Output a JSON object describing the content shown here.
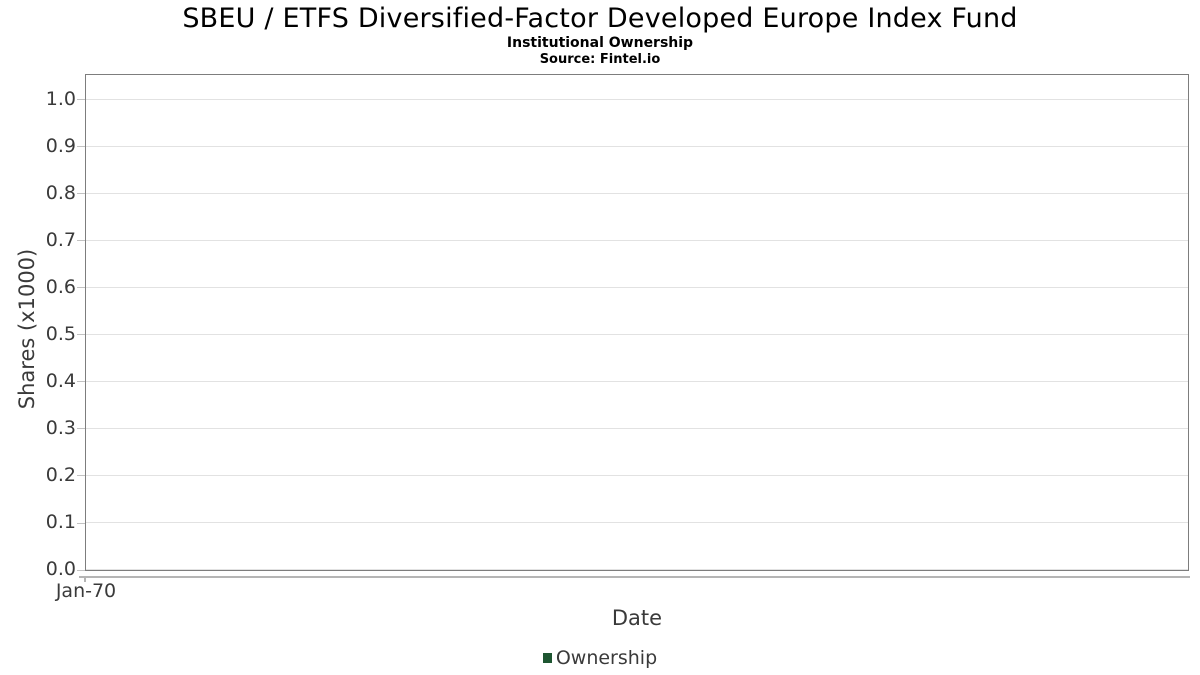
{
  "header": {
    "title": "SBEU / ETFS Diversified-Factor Developed Europe Index Fund",
    "subtitle": "Institutional Ownership",
    "source": "Source: Fintel.io"
  },
  "chart_data": {
    "type": "line",
    "title": "SBEU / ETFS Diversified-Factor Developed Europe Index Fund",
    "subtitle": "Institutional Ownership",
    "source": "Source: Fintel.io",
    "xlabel": "Date",
    "ylabel": "Shares (x1000)",
    "x_ticks": [
      "Jan-70"
    ],
    "y_ticks": [
      "1.0",
      "0.9",
      "0.8",
      "0.7",
      "0.6",
      "0.5",
      "0.4",
      "0.3",
      "0.2",
      "0.1",
      "0.0"
    ],
    "ylim": [
      0,
      1.05
    ],
    "grid": "horizontal-only",
    "legend_position": "bottom-center",
    "series": [
      {
        "name": "Ownership",
        "color": "#1e5631",
        "x": [],
        "values": []
      }
    ],
    "colors": {
      "plot_border": "#7d7d7d",
      "gridline": "#e2e2e2",
      "axis_line": "#b5b5b5",
      "tick_label": "#3a3a3a",
      "title": "#000000",
      "legend_marker": "#1e5631",
      "background": "#ffffff"
    }
  }
}
